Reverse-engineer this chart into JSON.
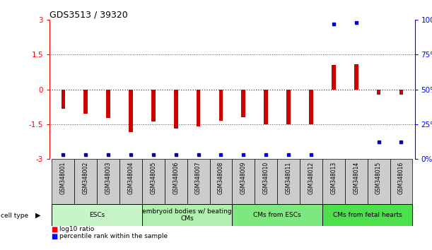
{
  "title": "GDS3513 / 39320",
  "samples": [
    "GSM348001",
    "GSM348002",
    "GSM348003",
    "GSM348004",
    "GSM348005",
    "GSM348006",
    "GSM348007",
    "GSM348008",
    "GSM348009",
    "GSM348010",
    "GSM348011",
    "GSM348012",
    "GSM348013",
    "GSM348014",
    "GSM348015",
    "GSM348016"
  ],
  "log10_ratio": [
    -0.85,
    -1.05,
    -1.25,
    -1.85,
    -1.4,
    -1.7,
    -1.6,
    -1.35,
    -1.2,
    -1.5,
    -1.5,
    -1.5,
    1.05,
    1.1,
    -0.22,
    -0.22
  ],
  "percentile_rank": [
    3,
    3,
    3,
    3,
    3,
    3,
    3,
    3,
    3,
    3,
    3,
    3,
    97,
    98,
    12,
    12
  ],
  "cell_types": [
    {
      "label": "ESCs",
      "start": 0,
      "end": 3,
      "color": "#c8f5c8"
    },
    {
      "label": "embryoid bodies w/ beating\nCMs",
      "start": 4,
      "end": 7,
      "color": "#b0efb0"
    },
    {
      "label": "CMs from ESCs",
      "start": 8,
      "end": 11,
      "color": "#7de87d"
    },
    {
      "label": "CMs from fetal hearts",
      "start": 12,
      "end": 15,
      "color": "#4de04d"
    }
  ],
  "ylim_left": [
    -3,
    3
  ],
  "ylim_right": [
    0,
    100
  ],
  "left_yticks": [
    -3,
    -1.5,
    0,
    1.5,
    3
  ],
  "right_yticks": [
    0,
    25,
    50,
    75,
    100
  ],
  "bar_color": "#cc0000",
  "dot_color": "#0000bb",
  "dotted_line_color": "#555555",
  "zero_line_color": "#cc0000",
  "background_color": "#ffffff",
  "sample_bg_color": "#cccccc",
  "bar_width": 0.18
}
